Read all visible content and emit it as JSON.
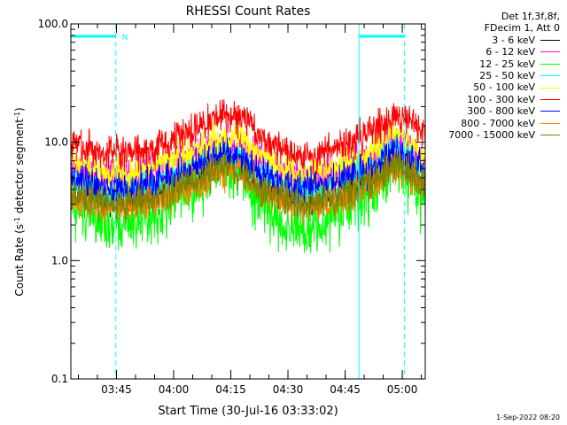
{
  "chart_data": {
    "type": "line",
    "title": "RHESSI Count Rates",
    "xlabel": "Start Time (30-Jul-16 03:33:02)",
    "ylabel_prefix": "Count Rate (s",
    "ylabel_sup1": "-1",
    "ylabel_mid": " detector segment",
    "ylabel_sup2": "-1",
    "ylabel_suffix": ")",
    "yscale": "log",
    "ylim": [
      0.1,
      100.0
    ],
    "xlim_minutes": [
      0,
      93
    ],
    "y_ticks": [
      {
        "value": 0.1,
        "label": "0.1"
      },
      {
        "value": 1.0,
        "label": "1.0"
      },
      {
        "value": 10.0,
        "label": "10.0"
      },
      {
        "value": 100.0,
        "label": "100.0"
      }
    ],
    "x_ticks": [
      {
        "minute": 11.97,
        "label": "03:45"
      },
      {
        "minute": 26.97,
        "label": "04:00"
      },
      {
        "minute": 41.97,
        "label": "04:15"
      },
      {
        "minute": 56.97,
        "label": "04:30"
      },
      {
        "minute": 71.97,
        "label": "04:45"
      },
      {
        "minute": 86.97,
        "label": "05:00"
      }
    ],
    "night_marker_label": "N",
    "night_periods": [
      {
        "start": 0.0,
        "end": 11.8
      },
      {
        "start": 75.6,
        "end": 87.5
      }
    ],
    "legend_header": [
      "Det 1f,3f,8f,",
      "FDecim 1, Att 0"
    ],
    "series": [
      {
        "name": "3 - 6 keV",
        "color": "#000000",
        "x": [
          0,
          10,
          20,
          30,
          40,
          45,
          50,
          60,
          65,
          70,
          80,
          85,
          88,
          90,
          92
        ],
        "y": [
          4.2,
          3.3,
          3.5,
          5.0,
          7.0,
          6.5,
          4.5,
          3.2,
          3.4,
          3.8,
          5.5,
          7.2,
          6.5,
          5.5,
          4.2
        ]
      },
      {
        "name": "6 - 12 keV",
        "color": "#ff00ff",
        "x": [
          0,
          10,
          20,
          30,
          40,
          45,
          50,
          60,
          65,
          70,
          80,
          85,
          88,
          90,
          92
        ],
        "y": [
          6.2,
          5.2,
          5.5,
          7.2,
          10.0,
          9.5,
          7.0,
          5.0,
          5.2,
          5.6,
          8.0,
          10.5,
          9.5,
          8.2,
          7.0
        ]
      },
      {
        "name": "12 - 25 keV",
        "color": "#00ff00",
        "x": [
          0,
          10,
          20,
          30,
          40,
          45,
          50,
          60,
          65,
          70,
          80,
          85,
          88,
          90,
          92
        ],
        "y": [
          3.0,
          2.0,
          2.3,
          3.6,
          5.8,
          5.2,
          3.0,
          1.7,
          2.0,
          2.4,
          4.0,
          6.0,
          5.4,
          4.5,
          3.4
        ]
      },
      {
        "name": "25 - 50 keV",
        "color": "#00ffff",
        "x": [
          0,
          10,
          20,
          30,
          40,
          45,
          50,
          60,
          65,
          70,
          80,
          85,
          88,
          90,
          92
        ],
        "y": [
          4.8,
          3.7,
          4.0,
          5.6,
          7.8,
          7.3,
          5.2,
          3.6,
          3.8,
          4.4,
          6.6,
          9.2,
          8.0,
          6.8,
          5.6
        ]
      },
      {
        "name": "50 - 100 keV",
        "color": "#ffff00",
        "x": [
          0,
          10,
          20,
          30,
          40,
          45,
          50,
          60,
          65,
          70,
          80,
          85,
          88,
          90,
          92
        ],
        "y": [
          6.8,
          5.4,
          5.8,
          7.8,
          11.0,
          10.4,
          7.4,
          5.3,
          5.5,
          6.2,
          8.8,
          12.5,
          10.5,
          9.0,
          7.6
        ]
      },
      {
        "name": "100 - 300 keV",
        "color": "#ff0000",
        "x": [
          0,
          10,
          20,
          30,
          40,
          45,
          50,
          60,
          65,
          70,
          80,
          85,
          88,
          90,
          92
        ],
        "y": [
          10.0,
          7.8,
          8.2,
          11.5,
          17.5,
          16.5,
          11.0,
          7.6,
          7.9,
          8.8,
          13.0,
          17.5,
          16.0,
          14.5,
          13.0
        ]
      },
      {
        "name": "300 - 800 keV",
        "color": "#0000ff",
        "x": [
          0,
          10,
          20,
          30,
          40,
          45,
          50,
          60,
          65,
          70,
          80,
          85,
          88,
          90,
          92
        ],
        "y": [
          4.8,
          4.0,
          4.3,
          5.6,
          7.6,
          7.2,
          5.4,
          4.1,
          4.3,
          4.7,
          6.4,
          8.3,
          7.6,
          6.8,
          6.0
        ]
      },
      {
        "name": "800 - 7000 keV",
        "color": "#ff8000",
        "x": [
          0,
          10,
          20,
          30,
          40,
          45,
          50,
          60,
          65,
          70,
          80,
          85,
          88,
          90,
          92
        ],
        "y": [
          3.3,
          2.8,
          3.0,
          4.0,
          5.6,
          5.3,
          3.8,
          2.8,
          3.0,
          3.3,
          4.6,
          6.2,
          5.6,
          5.0,
          4.4
        ]
      },
      {
        "name": "7000 - 15000 keV",
        "color": "#808000",
        "x": [
          0,
          10,
          20,
          30,
          40,
          45,
          50,
          60,
          65,
          70,
          80,
          85,
          88,
          90,
          92
        ],
        "y": [
          3.6,
          3.0,
          3.2,
          4.3,
          6.0,
          5.6,
          4.0,
          3.0,
          3.2,
          3.5,
          4.9,
          6.5,
          5.9,
          5.2,
          4.6
        ]
      }
    ],
    "grid": false,
    "legend_position": "right"
  },
  "footer_date": "1-Sep-2022 08:20"
}
